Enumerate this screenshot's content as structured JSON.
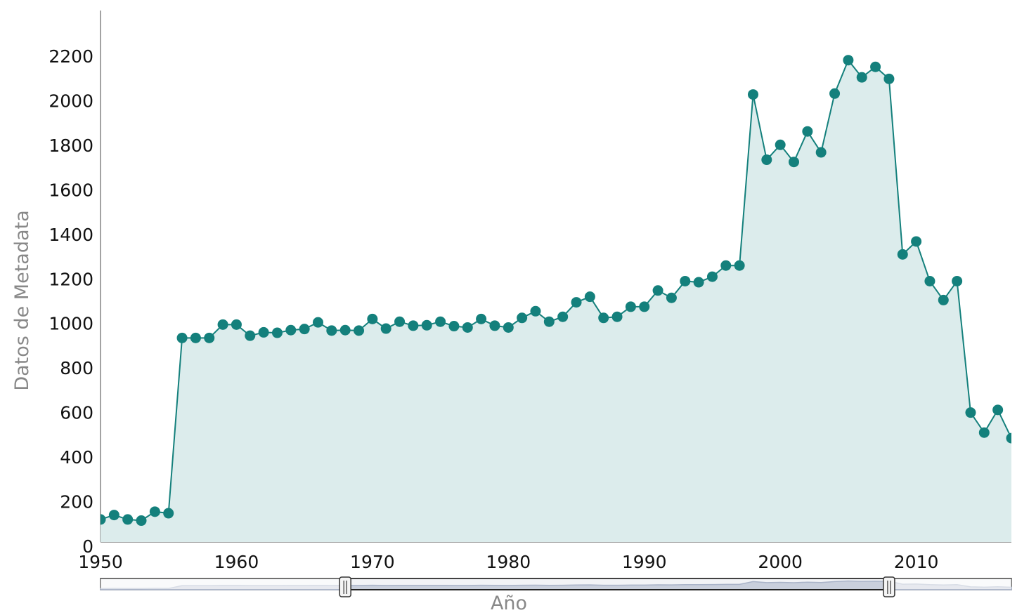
{
  "chart_data": {
    "type": "area",
    "xlabel": "Año",
    "ylabel": "Datos de Metadata",
    "xlim": [
      1950,
      2017
    ],
    "ylim": [
      0,
      2400
    ],
    "y_ticks": [
      0,
      200,
      400,
      600,
      800,
      1000,
      1200,
      1400,
      1600,
      1800,
      2000,
      2200
    ],
    "y_tick_labels": [
      "0",
      "200",
      "400",
      "600",
      "800",
      "1000",
      "1200",
      "1400",
      "1600",
      "1800",
      "2000",
      "2200"
    ],
    "x_ticks": [
      1950,
      1960,
      1970,
      1980,
      1990,
      2000,
      2010
    ],
    "x_tick_labels": [
      "1950",
      "1960",
      "1970",
      "1980",
      "1990",
      "2000",
      "2010"
    ],
    "grid": false,
    "colors": {
      "line": "#14807c",
      "fill": "#dcecec",
      "marker": "#14807c",
      "range_slider": "#a9b3c8"
    },
    "series": [
      {
        "x": [
          1950,
          1951,
          1952,
          1953,
          1954,
          1955,
          1956,
          1957,
          1958,
          1959,
          1960,
          1961,
          1962,
          1963,
          1964,
          1965,
          1966,
          1967,
          1968,
          1969,
          1970,
          1971,
          1972,
          1973,
          1974,
          1975,
          1976,
          1977,
          1978,
          1979,
          1980,
          1981,
          1982,
          1983,
          1984,
          1985,
          1986,
          1987,
          1988,
          1989,
          1990,
          1991,
          1992,
          1993,
          1994,
          1995,
          1996,
          1997,
          1998,
          1999,
          2000,
          2001,
          2002,
          2003,
          2004,
          2005,
          2006,
          2007,
          2008,
          2009,
          2010,
          2011,
          2012,
          2013,
          2014,
          2015,
          2016,
          2017
        ],
        "values": [
          120,
          140,
          120,
          115,
          155,
          148,
          935,
          935,
          935,
          995,
          995,
          945,
          960,
          958,
          970,
          975,
          1005,
          968,
          970,
          968,
          1020,
          977,
          1008,
          990,
          992,
          1008,
          988,
          982,
          1020,
          990,
          982,
          1025,
          1055,
          1008,
          1030,
          1095,
          1120,
          1025,
          1030,
          1075,
          1075,
          1148,
          1115,
          1190,
          1185,
          1210,
          1260,
          1260,
          2028,
          1735,
          1802,
          1725,
          1862,
          1768,
          2032,
          2182,
          2105,
          2152,
          2098,
          1310,
          1368,
          1190,
          1105,
          1190,
          600,
          510,
          612,
          485
        ]
      }
    ],
    "range_slider": {
      "range": [
        1950,
        2017
      ],
      "handle_positions": [
        1968,
        2008
      ]
    }
  }
}
